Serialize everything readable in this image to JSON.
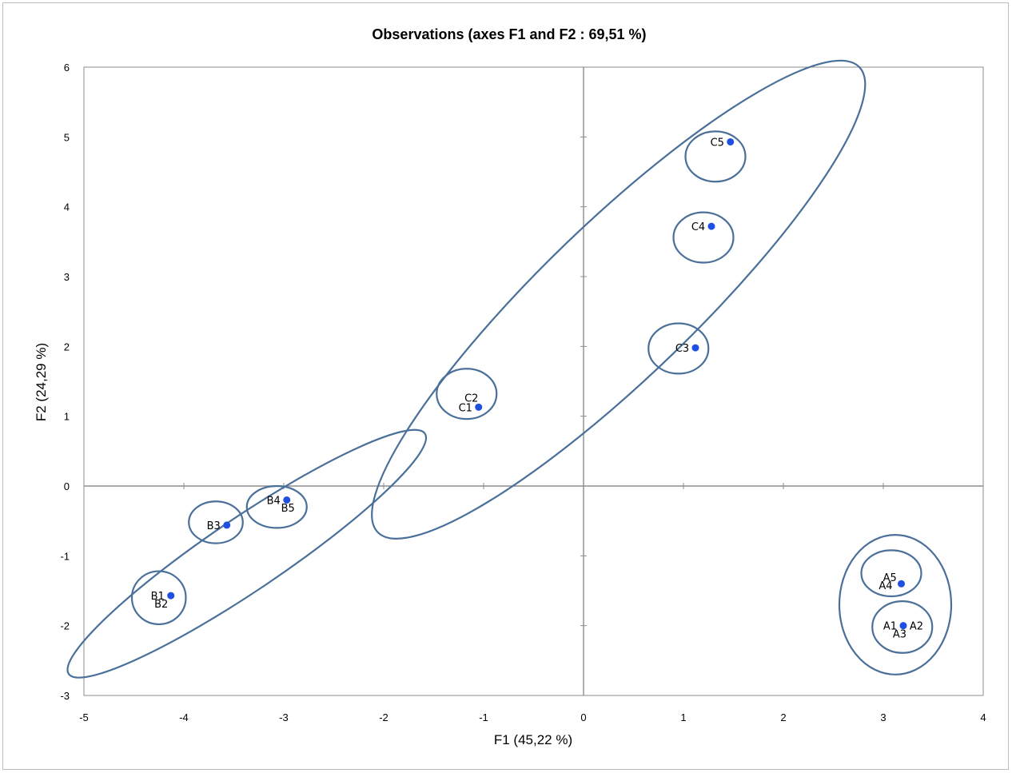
{
  "chart_data": {
    "type": "scatter",
    "title": "Observations (axes F1 and F2 : 69,51 %)",
    "xlabel": "F1 (45,22 %)",
    "ylabel": "F2 (24,29 %)",
    "xlim": [
      -5,
      4
    ],
    "ylim": [
      -3,
      6
    ],
    "x_ticks": [
      -5,
      -4,
      -3,
      -2,
      -1,
      0,
      1,
      2,
      3,
      4
    ],
    "y_ticks": [
      -3,
      -2,
      -1,
      0,
      1,
      2,
      3,
      4,
      5,
      6
    ],
    "grid": false,
    "point_color": "#1f4fe0",
    "ellipse_color": "#4a709a",
    "points": [
      {
        "x": 3.2,
        "y": -2.0,
        "labels": [
          {
            "text": "A1",
            "dx": -1.1,
            "dy": 0
          },
          {
            "text": "A2",
            "dx": 1.1,
            "dy": 0
          },
          {
            "text": "A3",
            "dx": -0.3,
            "dy": -0.65
          }
        ]
      },
      {
        "x": 3.18,
        "y": -1.4,
        "labels": [
          {
            "text": "A4",
            "dx": -1.3,
            "dy": -0.1
          },
          {
            "text": "A5",
            "dx": -0.95,
            "dy": 0.55
          }
        ]
      },
      {
        "x": -4.13,
        "y": -1.57,
        "labels": [
          {
            "text": "B1",
            "dx": -1.1,
            "dy": 0
          },
          {
            "text": "B2",
            "dx": -0.8,
            "dy": -0.65
          }
        ]
      },
      {
        "x": -3.57,
        "y": -0.56,
        "labels": [
          {
            "text": "B3",
            "dx": -1.1,
            "dy": 0
          }
        ]
      },
      {
        "x": -2.97,
        "y": -0.2,
        "labels": [
          {
            "text": "B4",
            "dx": -1.1,
            "dy": 0
          },
          {
            "text": "B5",
            "dx": 0.1,
            "dy": -0.65
          }
        ]
      },
      {
        "x": -1.05,
        "y": 1.13,
        "labels": [
          {
            "text": "C1",
            "dx": -1.1,
            "dy": 0
          },
          {
            "text": "C2",
            "dx": -0.6,
            "dy": 0.8
          }
        ]
      },
      {
        "x": 1.12,
        "y": 1.98,
        "labels": [
          {
            "text": "C3",
            "dx": -1.1,
            "dy": 0
          }
        ]
      },
      {
        "x": 1.28,
        "y": 3.72,
        "labels": [
          {
            "text": "C4",
            "dx": -1.1,
            "dy": 0
          }
        ]
      },
      {
        "x": 1.47,
        "y": 4.93,
        "labels": [
          {
            "text": "C5",
            "dx": -1.1,
            "dy": 0
          }
        ]
      }
    ],
    "ellipses": [
      {
        "name": "A-group",
        "cx": 3.12,
        "cy": -1.7,
        "rx": 0.56,
        "ry": 1.0,
        "rot": 0
      },
      {
        "name": "A1-A2-A3",
        "cx": 3.19,
        "cy": -2.02,
        "rx": 0.3,
        "ry": 0.37,
        "rot": 0
      },
      {
        "name": "A4-A5",
        "cx": 3.08,
        "cy": -1.25,
        "rx": 0.3,
        "ry": 0.33,
        "rot": 0
      },
      {
        "name": "B-group",
        "cx": -3.37,
        "cy": -0.97,
        "rx": 2.15,
        "ry": 0.52,
        "rot": -34
      },
      {
        "name": "B1-B2",
        "cx": -4.25,
        "cy": -1.6,
        "rx": 0.27,
        "ry": 0.38,
        "rot": 0
      },
      {
        "name": "B3",
        "cx": -3.68,
        "cy": -0.52,
        "rx": 0.27,
        "ry": 0.3,
        "rot": 0
      },
      {
        "name": "B4-B5",
        "cx": -3.07,
        "cy": -0.3,
        "rx": 0.3,
        "ry": 0.3,
        "rot": 0
      },
      {
        "name": "C-group",
        "cx": 0.35,
        "cy": 2.67,
        "rx": 3.35,
        "ry": 1.1,
        "rot": -44
      },
      {
        "name": "C1-C2",
        "cx": -1.17,
        "cy": 1.32,
        "rx": 0.3,
        "ry": 0.36,
        "rot": 0
      },
      {
        "name": "C3",
        "cx": 0.95,
        "cy": 1.97,
        "rx": 0.3,
        "ry": 0.36,
        "rot": 0
      },
      {
        "name": "C4",
        "cx": 1.2,
        "cy": 3.56,
        "rx": 0.3,
        "ry": 0.36,
        "rot": 0
      },
      {
        "name": "C5",
        "cx": 1.32,
        "cy": 4.72,
        "rx": 0.3,
        "ry": 0.36,
        "rot": 0
      }
    ]
  }
}
